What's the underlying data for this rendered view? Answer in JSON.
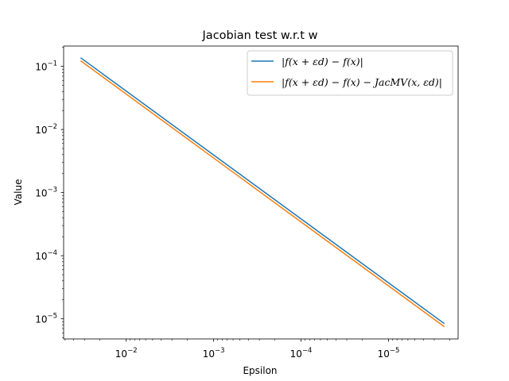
{
  "chart_data": {
    "type": "line",
    "title": "Jacobian test w.r.t w",
    "xlabel": "Epsilon",
    "ylabel": "Value",
    "xscale": "log",
    "yscale": "log",
    "x_inverted": true,
    "xlim": [
      0.052,
      1.6e-06
    ],
    "ylim": [
      4.8e-06,
      0.21
    ],
    "x_ticks": [
      {
        "value": 0.01,
        "base": "10",
        "exp": "−2"
      },
      {
        "value": 0.001,
        "base": "10",
        "exp": "−3"
      },
      {
        "value": 0.0001,
        "base": "10",
        "exp": "−4"
      },
      {
        "value": 1e-05,
        "base": "10",
        "exp": "−5"
      }
    ],
    "y_ticks": [
      {
        "value": 0.1,
        "base": "10",
        "exp": "−1"
      },
      {
        "value": 0.01,
        "base": "10",
        "exp": "−2"
      },
      {
        "value": 0.001,
        "base": "10",
        "exp": "−3"
      },
      {
        "value": 0.0001,
        "base": "10",
        "exp": "−4"
      },
      {
        "value": 1e-05,
        "base": "10",
        "exp": "−5"
      }
    ],
    "grid": false,
    "legend_position": "top-right",
    "series": [
      {
        "name": "|f(x + εd) − f(x)|",
        "color": "#1f77b4",
        "x": [
          0.0333,
          2.3e-06
        ],
        "y": [
          0.137,
          8.4e-06
        ]
      },
      {
        "name": "|f(x + εd) − f(x) − JacMV(x, εd)|",
        "color": "#ff7f0e",
        "x": [
          0.0333,
          2.3e-06
        ],
        "y": [
          0.123,
          7.5e-06
        ]
      }
    ]
  }
}
